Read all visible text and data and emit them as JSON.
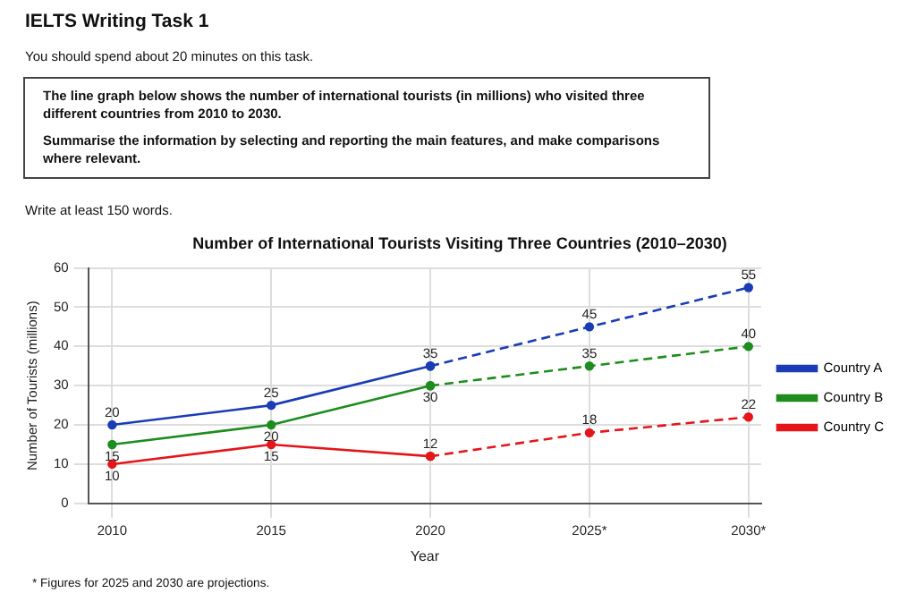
{
  "chart_data": {
    "type": "line",
    "title": "Number of International Tourists Visiting Three Countries (2010–2030)",
    "xlabel": "Year",
    "ylabel": "Number of Tourists (millions)",
    "annotations": [
      "IELTS Writing Task 1",
      "You should spend about 20 minutes on this task.",
      "The line graph below shows the number of international tourists (in millions) who visited three different countries from 2010 to 2030.",
      "Summarise the information by selecting and reporting the main features, and make comparisons where relevant.",
      "Write at least 150 words.",
      "* Figures for 2025 and 2030 are projections."
    ],
    "categories": [
      "2010",
      "2015",
      "2020",
      "2025*",
      "2030*"
    ],
    "series": [
      {
        "name": "Country A",
        "color": "#1a3cb4",
        "values": [
          20,
          25,
          35,
          null,
          null
        ],
        "value_labels": [
          "20",
          "25",
          "35",
          null,
          null
        ]
      },
      {
        "name": "Country B",
        "color": "#1e8c1e",
        "values": [
          15,
          20,
          30,
          null,
          null
        ],
        "value_labels": [
          "15",
          "20",
          "30",
          null,
          null
        ]
      },
      {
        "name": "Country C",
        "color": "#e3161b",
        "values": [
          10,
          15,
          12,
          null,
          null
        ],
        "value_labels": [
          "10",
          "15",
          "12",
          null,
          null
        ]
      },
      {
        "color": "#1a3cb4",
        "values": [
          null,
          null,
          35,
          45,
          55
        ],
        "line_style": "dashed",
        "value_labels": [
          null,
          null,
          null,
          "45",
          "55"
        ]
      },
      {
        "color": "#1e8c1e",
        "values": [
          null,
          null,
          30,
          35,
          40
        ],
        "line_style": "dashed",
        "value_labels": [
          null,
          null,
          null,
          "35",
          "40"
        ]
      },
      {
        "color": "#e3161b",
        "values": [
          null,
          null,
          12,
          18,
          22
        ],
        "line_style": "dashed",
        "value_labels": [
          null,
          null,
          null,
          "18",
          "22"
        ]
      }
    ],
    "ylim": [
      0,
      60
    ],
    "yticks": [
      0,
      10,
      20,
      30,
      40,
      50,
      60
    ],
    "grid": true,
    "legend": "right",
    "marker": "circle",
    "line_style": "solid"
  }
}
